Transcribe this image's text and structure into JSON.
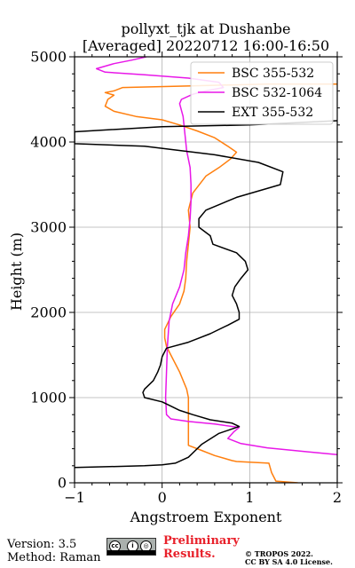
{
  "title": {
    "line1": "pollyxt_tjk at Dushanbe",
    "line2": "[Averaged] 20220712 16:00-16:50"
  },
  "chart_data": {
    "type": "line",
    "xlabel": "Angstroem Exponent",
    "ylabel": "Height (m)",
    "xlim": [
      -1,
      2
    ],
    "ylim": [
      0,
      5000
    ],
    "xticks": [
      -1,
      0,
      1,
      2
    ],
    "yticks": [
      0,
      1000,
      2000,
      3000,
      4000,
      5000
    ],
    "xtick_labels": [
      "−1",
      "0",
      "1",
      "2"
    ],
    "ytick_labels": [
      "0",
      "1000",
      "2000",
      "3000",
      "4000",
      "5000"
    ],
    "grid": true,
    "legend_position": "top-right",
    "series": [
      {
        "name": "BSC 355-532",
        "color": "#ff7f0e",
        "points": [
          [
            1.55,
            0
          ],
          [
            1.3,
            20
          ],
          [
            1.25,
            120
          ],
          [
            1.22,
            230
          ],
          [
            0.85,
            250
          ],
          [
            0.8,
            260
          ],
          [
            0.6,
            320
          ],
          [
            0.45,
            380
          ],
          [
            0.3,
            440
          ],
          [
            0.3,
            480
          ],
          [
            0.3,
            600
          ],
          [
            0.3,
            800
          ],
          [
            0.3,
            1000
          ],
          [
            0.28,
            1100
          ],
          [
            0.2,
            1300
          ],
          [
            0.1,
            1500
          ],
          [
            0.05,
            1600
          ],
          [
            0.03,
            1700
          ],
          [
            0.03,
            1800
          ],
          [
            0.1,
            1950
          ],
          [
            0.2,
            2100
          ],
          [
            0.25,
            2250
          ],
          [
            0.27,
            2400
          ],
          [
            0.28,
            2600
          ],
          [
            0.3,
            2800
          ],
          [
            0.32,
            3000
          ],
          [
            0.3,
            3200
          ],
          [
            0.35,
            3400
          ],
          [
            0.5,
            3600
          ],
          [
            0.65,
            3700
          ],
          [
            0.78,
            3800
          ],
          [
            0.85,
            3880
          ],
          [
            0.75,
            3950
          ],
          [
            0.6,
            4050
          ],
          [
            0.4,
            4130
          ],
          [
            0.2,
            4200
          ],
          [
            0.0,
            4260
          ],
          [
            -0.3,
            4300
          ],
          [
            -0.55,
            4360
          ],
          [
            -0.65,
            4420
          ],
          [
            -0.62,
            4500
          ],
          [
            -0.55,
            4550
          ],
          [
            -0.65,
            4580
          ],
          [
            -0.55,
            4600
          ],
          [
            -0.45,
            4640
          ],
          [
            0.4,
            4660
          ],
          [
            1.2,
            4680
          ],
          [
            2.0,
            4680
          ]
        ]
      },
      {
        "name": "BSC 532-1064",
        "color": "#e817e8",
        "points": [
          [
            2.0,
            330
          ],
          [
            1.6,
            370
          ],
          [
            1.2,
            410
          ],
          [
            0.9,
            460
          ],
          [
            0.75,
            520
          ],
          [
            0.82,
            600
          ],
          [
            0.88,
            650
          ],
          [
            0.6,
            690
          ],
          [
            0.3,
            720
          ],
          [
            0.1,
            750
          ],
          [
            0.05,
            800
          ],
          [
            0.04,
            1000
          ],
          [
            0.05,
            1300
          ],
          [
            0.06,
            1600
          ],
          [
            0.08,
            1900
          ],
          [
            0.12,
            2100
          ],
          [
            0.2,
            2300
          ],
          [
            0.25,
            2500
          ],
          [
            0.27,
            2700
          ],
          [
            0.3,
            2900
          ],
          [
            0.32,
            3100
          ],
          [
            0.33,
            3300
          ],
          [
            0.33,
            3500
          ],
          [
            0.32,
            3700
          ],
          [
            0.28,
            3900
          ],
          [
            0.26,
            4100
          ],
          [
            0.24,
            4300
          ],
          [
            0.2,
            4450
          ],
          [
            0.22,
            4500
          ],
          [
            0.35,
            4560
          ],
          [
            0.5,
            4600
          ],
          [
            0.7,
            4640
          ],
          [
            0.65,
            4700
          ],
          [
            0.3,
            4750
          ],
          [
            -0.2,
            4790
          ],
          [
            -0.65,
            4820
          ],
          [
            -0.75,
            4860
          ],
          [
            -0.55,
            4920
          ],
          [
            -0.35,
            4960
          ],
          [
            -0.18,
            5000
          ]
        ]
      },
      {
        "name": "EXT 355-532",
        "color": "#000000",
        "points": [
          [
            -1.0,
            180
          ],
          [
            -0.6,
            190
          ],
          [
            -0.2,
            200
          ],
          [
            0.0,
            210
          ],
          [
            0.15,
            230
          ],
          [
            0.3,
            300
          ],
          [
            0.45,
            450
          ],
          [
            0.65,
            580
          ],
          [
            0.88,
            660
          ],
          [
            0.8,
            700
          ],
          [
            0.55,
            740
          ],
          [
            0.35,
            800
          ],
          [
            0.2,
            850
          ],
          [
            0.1,
            900
          ],
          [
            0.0,
            950
          ],
          [
            -0.2,
            1000
          ],
          [
            -0.22,
            1060
          ],
          [
            -0.2,
            1100
          ],
          [
            -0.1,
            1200
          ],
          [
            -0.05,
            1300
          ],
          [
            -0.02,
            1380
          ],
          [
            0.0,
            1480
          ],
          [
            0.05,
            1580
          ],
          [
            0.3,
            1650
          ],
          [
            0.55,
            1750
          ],
          [
            0.75,
            1850
          ],
          [
            0.88,
            1920
          ],
          [
            0.88,
            2000
          ],
          [
            0.85,
            2100
          ],
          [
            0.8,
            2200
          ],
          [
            0.83,
            2300
          ],
          [
            0.9,
            2400
          ],
          [
            0.98,
            2500
          ],
          [
            0.95,
            2600
          ],
          [
            0.85,
            2700
          ],
          [
            0.58,
            2800
          ],
          [
            0.55,
            2900
          ],
          [
            0.42,
            3000
          ],
          [
            0.42,
            3100
          ],
          [
            0.5,
            3200
          ],
          [
            0.85,
            3350
          ],
          [
            1.35,
            3500
          ],
          [
            1.38,
            3650
          ],
          [
            1.1,
            3760
          ],
          [
            0.6,
            3850
          ],
          [
            -0.2,
            3950
          ],
          [
            -1.0,
            3980
          ],
          [
            -1.0,
            4120
          ],
          [
            0.0,
            4180
          ],
          [
            1.0,
            4200
          ],
          [
            2.0,
            4250
          ]
        ]
      }
    ]
  },
  "footer": {
    "version": "Version: 3.5",
    "method": "Method: Raman",
    "preliminary_line1": "Preliminary",
    "preliminary_line2": "Results.",
    "copyright_line1": "© TROPOS 2022.",
    "copyright_line2": "CC BY SA 4.0 License."
  }
}
